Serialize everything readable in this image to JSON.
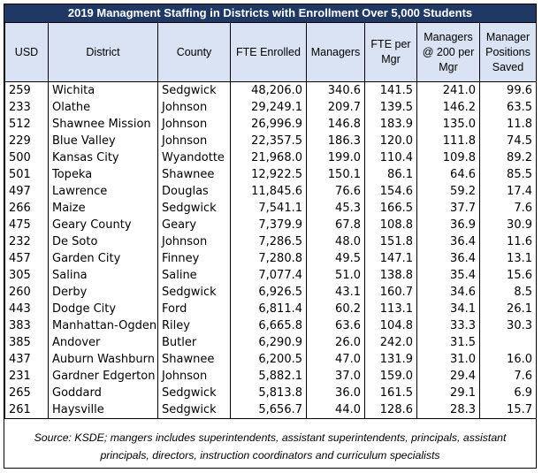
{
  "title": "2019 Managment Staffing in Districts with Enrollment Over 5,000 Students",
  "headers": [
    "USD",
    "District",
    "County",
    "FTE Enrolled",
    "Managers",
    "FTE per Mgr",
    "Managers @ 200 per Mgr",
    "Manager Positions Saved"
  ],
  "rows": [
    [
      "259",
      "Wichita",
      "Sedgwick",
      "48,206.0",
      "340.6",
      "141.5",
      "241.0",
      "99.6"
    ],
    [
      "233",
      "Olathe",
      "Johnson",
      "29,249.1",
      "209.7",
      "139.5",
      "146.2",
      "63.5"
    ],
    [
      "512",
      "Shawnee Mission",
      "Johnson",
      "26,996.9",
      "146.8",
      "183.9",
      "135.0",
      "11.8"
    ],
    [
      "229",
      "Blue Valley",
      "Johnson",
      "22,357.5",
      "186.3",
      "120.0",
      "111.8",
      "74.5"
    ],
    [
      "500",
      "Kansas City",
      "Wyandotte",
      "21,968.0",
      "199.0",
      "110.4",
      "109.8",
      "89.2"
    ],
    [
      "501",
      "Topeka",
      "Shawnee",
      "12,922.5",
      "150.1",
      "86.1",
      "64.6",
      "85.5"
    ],
    [
      "497",
      "Lawrence",
      "Douglas",
      "11,845.6",
      "76.6",
      "154.6",
      "59.2",
      "17.4"
    ],
    [
      "266",
      "Maize",
      "Sedgwick",
      "7,541.1",
      "45.3",
      "166.5",
      "37.7",
      "7.6"
    ],
    [
      "475",
      "Geary County",
      "Geary",
      "7,379.9",
      "67.8",
      "108.8",
      "36.9",
      "30.9"
    ],
    [
      "232",
      "De Soto",
      "Johnson",
      "7,286.5",
      "48.0",
      "151.8",
      "36.4",
      "11.6"
    ],
    [
      "457",
      "Garden City",
      "Finney",
      "7,280.8",
      "49.5",
      "147.1",
      "36.4",
      "13.1"
    ],
    [
      "305",
      "Salina",
      "Saline",
      "7,077.4",
      "51.0",
      "138.8",
      "35.4",
      "15.6"
    ],
    [
      "260",
      "Derby",
      "Sedgwick",
      "6,926.5",
      "43.1",
      "160.7",
      "34.6",
      "8.5"
    ],
    [
      "443",
      "Dodge City",
      "Ford",
      "6,811.4",
      "60.2",
      "113.1",
      "34.1",
      "26.1"
    ],
    [
      "383",
      "Manhattan-Ogden",
      "Riley",
      "6,665.8",
      "63.6",
      "104.8",
      "33.3",
      "30.3"
    ],
    [
      "385",
      "Andover",
      "Butler",
      "6,290.9",
      "26.0",
      "242.0",
      "31.5",
      ""
    ],
    [
      "437",
      "Auburn Washburn",
      "Shawnee",
      "6,200.5",
      "47.0",
      "131.9",
      "31.0",
      "16.0"
    ],
    [
      "231",
      "Gardner Edgerton",
      "Johnson",
      "5,882.1",
      "37.0",
      "159.0",
      "29.4",
      "7.6"
    ],
    [
      "265",
      "Goddard",
      "Sedgwick",
      "5,813.8",
      "36.0",
      "161.5",
      "29.1",
      "6.9"
    ],
    [
      "261",
      "Haysville",
      "Sedgwick",
      "5,656.7",
      "44.0",
      "128.6",
      "28.3",
      "15.7"
    ]
  ],
  "source": "Source: KSDE; mangers includes superintendents, assistant superintendents, principals, assistant principals, directors, instruction coordinators and curriculum specialists",
  "colors": {
    "title_bg": "#1f3864",
    "header_bg": "#dae3f3"
  }
}
